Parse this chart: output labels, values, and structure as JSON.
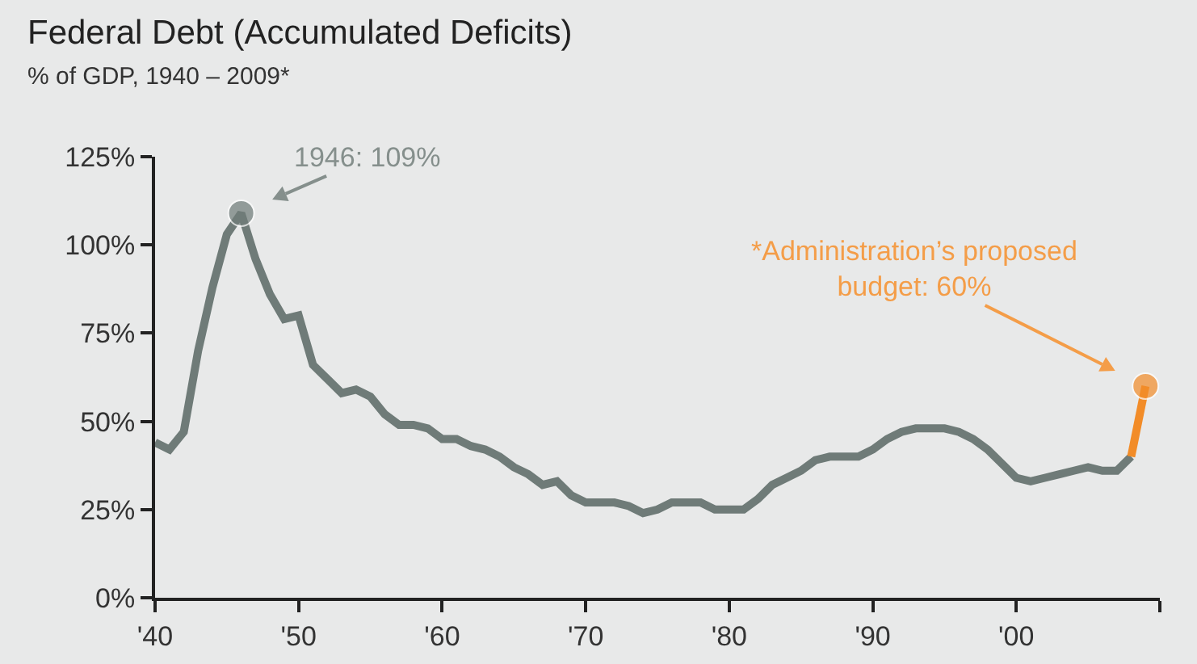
{
  "chart_data": {
    "type": "line",
    "title": "Federal Debt (Accumulated Deficits)",
    "subtitle": "% of GDP, 1940 – 2009*",
    "x": [
      1940,
      1941,
      1942,
      1943,
      1944,
      1945,
      1946,
      1947,
      1948,
      1949,
      1950,
      1951,
      1952,
      1953,
      1954,
      1955,
      1956,
      1957,
      1958,
      1959,
      1960,
      1961,
      1962,
      1963,
      1964,
      1965,
      1966,
      1967,
      1968,
      1969,
      1970,
      1971,
      1972,
      1973,
      1974,
      1975,
      1976,
      1977,
      1978,
      1979,
      1980,
      1981,
      1982,
      1983,
      1984,
      1985,
      1986,
      1987,
      1988,
      1989,
      1990,
      1991,
      1992,
      1993,
      1994,
      1995,
      1996,
      1997,
      1998,
      1999,
      2000,
      2001,
      2002,
      2003,
      2004,
      2005,
      2006,
      2007,
      2008
    ],
    "series": [
      {
        "color": "#6f7b78",
        "values": [
          44,
          42,
          47,
          70,
          88,
          103,
          109,
          96,
          86,
          79,
          80,
          66,
          62,
          58,
          59,
          57,
          52,
          49,
          49,
          48,
          45,
          45,
          43,
          42,
          40,
          37,
          35,
          32,
          33,
          29,
          27,
          27,
          27,
          26,
          24,
          25,
          27,
          27,
          27,
          25,
          25,
          25,
          28,
          32,
          34,
          36,
          39,
          40,
          40,
          40,
          42,
          45,
          47,
          48,
          48,
          48,
          47,
          45,
          42,
          38,
          34,
          33,
          34,
          35,
          36,
          37,
          36,
          36,
          40
        ]
      },
      {
        "color": "#f28c28",
        "x": [
          2008,
          2009
        ],
        "values": [
          40,
          60
        ]
      }
    ],
    "xlim": [
      1940,
      2010
    ],
    "xticks": [
      {
        "value": 1940,
        "label": "'40"
      },
      {
        "value": 1950,
        "label": "'50"
      },
      {
        "value": 1960,
        "label": "'60"
      },
      {
        "value": 1970,
        "label": "'70"
      },
      {
        "value": 1980,
        "label": "'80"
      },
      {
        "value": 1990,
        "label": "'90"
      },
      {
        "value": 2000,
        "label": "'00"
      },
      {
        "value": 2010,
        "label": null
      }
    ],
    "ylim": [
      0,
      125
    ],
    "yticks": [
      {
        "value": 0,
        "label": "0%"
      },
      {
        "value": 25,
        "label": "25%"
      },
      {
        "value": 50,
        "label": "50%"
      },
      {
        "value": 75,
        "label": "75%"
      },
      {
        "value": 100,
        "label": "100%"
      },
      {
        "value": 125,
        "label": "125%"
      }
    ],
    "annotations": [
      {
        "text": "1946: 109%",
        "x": 1946,
        "y": 109
      },
      {
        "text": "*Administration’s proposed\nbudget: 60%",
        "x": 2009,
        "y": 60
      }
    ],
    "grid": false,
    "line_style": "solid"
  }
}
